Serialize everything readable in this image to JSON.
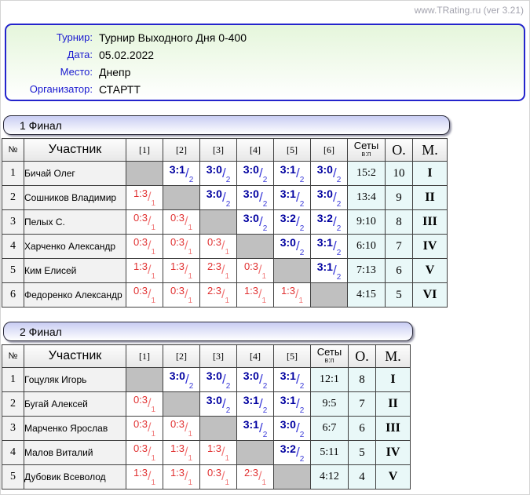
{
  "site_version": "www.TRating.ru (ver 3.21)",
  "info": {
    "rows": [
      {
        "label": "Турнир:",
        "value": "Турнир Выходного Дня 0-400"
      },
      {
        "label": "Дата:",
        "value": "05.02.2022"
      },
      {
        "label": "Место:",
        "value": "Днепр"
      },
      {
        "label": "Организатор:",
        "value": "СТАРТТ"
      }
    ]
  },
  "colors": {
    "win_score": "#0000a0",
    "loss_score": "#e03030",
    "self_cell": "#c0c0c0",
    "result_columns_bg": "#e9f8f8",
    "info_border": "#2424cc",
    "title_bar_top": "#c9cdf3"
  },
  "tables": [
    {
      "title": "1 Финал",
      "headers": {
        "num": "№",
        "participant": "Участник",
        "sets": "Сеты",
        "sets_sub": "в:п",
        "points": "О.",
        "place": "М."
      },
      "round_headers": [
        "[1]",
        "[2]",
        "[3]",
        "[4]",
        "[5]",
        "[6]"
      ],
      "rows": [
        {
          "num": "1",
          "name": "Бичай Олег",
          "cells": [
            null,
            {
              "s": "3:1",
              "p": "2",
              "w": true
            },
            {
              "s": "3:0",
              "p": "2",
              "w": true
            },
            {
              "s": "3:0",
              "p": "2",
              "w": true
            },
            {
              "s": "3:1",
              "p": "2",
              "w": true
            },
            {
              "s": "3:0",
              "p": "2",
              "w": true
            }
          ],
          "sets": "15:2",
          "points": "10",
          "place": "I"
        },
        {
          "num": "2",
          "name": "Сошников Владимир",
          "cells": [
            {
              "s": "1:3",
              "p": "1",
              "w": false
            },
            null,
            {
              "s": "3:0",
              "p": "2",
              "w": true
            },
            {
              "s": "3:0",
              "p": "2",
              "w": true
            },
            {
              "s": "3:1",
              "p": "2",
              "w": true
            },
            {
              "s": "3:0",
              "p": "2",
              "w": true
            }
          ],
          "sets": "13:4",
          "points": "9",
          "place": "II"
        },
        {
          "num": "3",
          "name": "Пелых С.",
          "cells": [
            {
              "s": "0:3",
              "p": "1",
              "w": false
            },
            {
              "s": "0:3",
              "p": "1",
              "w": false
            },
            null,
            {
              "s": "3:0",
              "p": "2",
              "w": true
            },
            {
              "s": "3:2",
              "p": "2",
              "w": true
            },
            {
              "s": "3:2",
              "p": "2",
              "w": true
            }
          ],
          "sets": "9:10",
          "points": "8",
          "place": "III"
        },
        {
          "num": "4",
          "name": "Харченко Александр",
          "cells": [
            {
              "s": "0:3",
              "p": "1",
              "w": false
            },
            {
              "s": "0:3",
              "p": "1",
              "w": false
            },
            {
              "s": "0:3",
              "p": "1",
              "w": false
            },
            null,
            {
              "s": "3:0",
              "p": "2",
              "w": true
            },
            {
              "s": "3:1",
              "p": "2",
              "w": true
            }
          ],
          "sets": "6:10",
          "points": "7",
          "place": "IV"
        },
        {
          "num": "5",
          "name": "Ким Елисей",
          "cells": [
            {
              "s": "1:3",
              "p": "1",
              "w": false
            },
            {
              "s": "1:3",
              "p": "1",
              "w": false
            },
            {
              "s": "2:3",
              "p": "1",
              "w": false
            },
            {
              "s": "0:3",
              "p": "1",
              "w": false
            },
            null,
            {
              "s": "3:1",
              "p": "2",
              "w": true
            }
          ],
          "sets": "7:13",
          "points": "6",
          "place": "V"
        },
        {
          "num": "6",
          "name": "Федоренко Александр",
          "cells": [
            {
              "s": "0:3",
              "p": "1",
              "w": false
            },
            {
              "s": "0:3",
              "p": "1",
              "w": false
            },
            {
              "s": "2:3",
              "p": "1",
              "w": false
            },
            {
              "s": "1:3",
              "p": "1",
              "w": false
            },
            {
              "s": "1:3",
              "p": "1",
              "w": false
            },
            null
          ],
          "sets": "4:15",
          "points": "5",
          "place": "VI"
        }
      ]
    },
    {
      "title": "2 Финал",
      "headers": {
        "num": "№",
        "participant": "Участник",
        "sets": "Сеты",
        "sets_sub": "в:п",
        "points": "О.",
        "place": "М."
      },
      "round_headers": [
        "[1]",
        "[2]",
        "[3]",
        "[4]",
        "[5]"
      ],
      "rows": [
        {
          "num": "1",
          "name": "Гоцуляк Игорь",
          "cells": [
            null,
            {
              "s": "3:0",
              "p": "2",
              "w": true
            },
            {
              "s": "3:0",
              "p": "2",
              "w": true
            },
            {
              "s": "3:0",
              "p": "2",
              "w": true
            },
            {
              "s": "3:1",
              "p": "2",
              "w": true
            }
          ],
          "sets": "12:1",
          "points": "8",
          "place": "I"
        },
        {
          "num": "2",
          "name": "Бугай Алексей",
          "cells": [
            {
              "s": "0:3",
              "p": "1",
              "w": false
            },
            null,
            {
              "s": "3:0",
              "p": "2",
              "w": true
            },
            {
              "s": "3:1",
              "p": "2",
              "w": true
            },
            {
              "s": "3:1",
              "p": "2",
              "w": true
            }
          ],
          "sets": "9:5",
          "points": "7",
          "place": "II"
        },
        {
          "num": "3",
          "name": "Марченко Ярослав",
          "cells": [
            {
              "s": "0:3",
              "p": "1",
              "w": false
            },
            {
              "s": "0:3",
              "p": "1",
              "w": false
            },
            null,
            {
              "s": "3:1",
              "p": "2",
              "w": true
            },
            {
              "s": "3:0",
              "p": "2",
              "w": true
            }
          ],
          "sets": "6:7",
          "points": "6",
          "place": "III"
        },
        {
          "num": "4",
          "name": "Малов Виталий",
          "cells": [
            {
              "s": "0:3",
              "p": "1",
              "w": false
            },
            {
              "s": "1:3",
              "p": "1",
              "w": false
            },
            {
              "s": "1:3",
              "p": "1",
              "w": false
            },
            null,
            {
              "s": "3:2",
              "p": "2",
              "w": true
            }
          ],
          "sets": "5:11",
          "points": "5",
          "place": "IV"
        },
        {
          "num": "5",
          "name": "Дубовик Всеволод",
          "cells": [
            {
              "s": "1:3",
              "p": "1",
              "w": false
            },
            {
              "s": "1:3",
              "p": "1",
              "w": false
            },
            {
              "s": "0:3",
              "p": "1",
              "w": false
            },
            {
              "s": "2:3",
              "p": "1",
              "w": false
            },
            null
          ],
          "sets": "4:12",
          "points": "4",
          "place": "V"
        }
      ]
    }
  ],
  "layout": {
    "col_widths": {
      "num": 28,
      "name": 130,
      "round": 47,
      "sets": 48,
      "points": 35,
      "place": 44
    }
  }
}
